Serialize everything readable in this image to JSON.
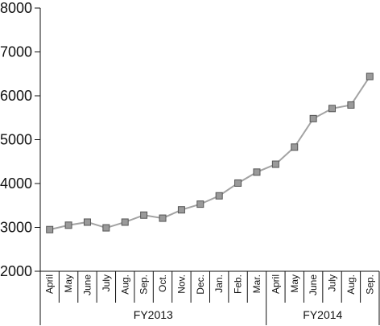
{
  "chart_data": {
    "type": "line",
    "title": "",
    "xlabel": "",
    "ylabel": "",
    "ylim": [
      2000,
      8000
    ],
    "yticks": [
      2000,
      3000,
      4000,
      5000,
      6000,
      7000,
      8000
    ],
    "grid": false,
    "categories": [
      "April",
      "May",
      "June",
      "July",
      "Aug.",
      "Sep.",
      "Oct.",
      "Nov.",
      "Dec.",
      "Jan.",
      "Feb.",
      "Mar.",
      "April",
      "May",
      "June",
      "July",
      "Aug.",
      "Sep."
    ],
    "groups": [
      {
        "label": "FY2013",
        "count": 12
      },
      {
        "label": "FY2014",
        "count": 6
      }
    ],
    "series": [
      {
        "color": "#a3a3a3",
        "marker": "square",
        "values": [
          2950,
          3050,
          3120,
          2990,
          3120,
          3280,
          3210,
          3400,
          3530,
          3720,
          4010,
          4260,
          4440,
          4830,
          5480,
          5710,
          5790,
          6440
        ]
      }
    ]
  }
}
